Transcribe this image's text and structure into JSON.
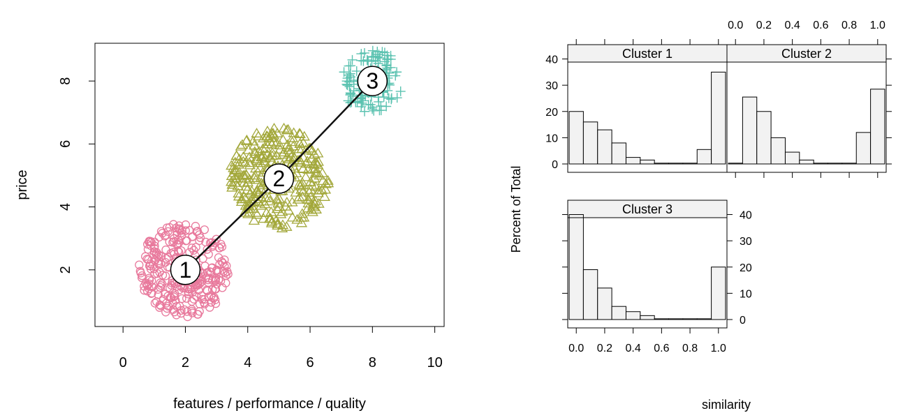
{
  "chart_data": [
    {
      "type": "scatter",
      "xlabel": "features / performance / quality",
      "ylabel": "price",
      "xlim": [
        -0.9,
        10.3
      ],
      "ylim": [
        0.2,
        9.2
      ],
      "x_ticks": [
        "0",
        "2",
        "4",
        "6",
        "8",
        "10"
      ],
      "y_ticks": [
        "2",
        "4",
        "6",
        "8"
      ],
      "grid": false,
      "colors": {
        "cluster1": "#e8799c",
        "cluster2": "#a3a83b",
        "cluster3": "#5bc2b0",
        "line": "#111111"
      },
      "clusters": [
        {
          "label": "1",
          "center": [
            2.0,
            2.0
          ],
          "radius": 1.5,
          "n": 300,
          "marker": "circle",
          "color": "#e8799c"
        },
        {
          "label": "2",
          "center": [
            5.0,
            4.9
          ],
          "radius": 1.6,
          "n": 300,
          "marker": "triangle",
          "color": "#a3a83b"
        },
        {
          "label": "3",
          "center": [
            8.0,
            8.0
          ],
          "radius": 1.0,
          "n": 120,
          "marker": "plus",
          "color": "#5bc2b0"
        }
      ],
      "center_path": [
        [
          2.0,
          2.0
        ],
        [
          5.0,
          4.9
        ],
        [
          8.0,
          8.0
        ]
      ]
    },
    {
      "type": "bar",
      "subtype": "histogram-panels",
      "xlabel": "similarity",
      "ylabel": "Percent of Total",
      "xlim": [
        -0.06,
        1.06
      ],
      "ylim": [
        0,
        42
      ],
      "x_ticks": [
        "0.0",
        "0.2",
        "0.4",
        "0.6",
        "0.8",
        "1.0"
      ],
      "y_ticks": [
        "0",
        "10",
        "20",
        "30",
        "40"
      ],
      "bin_edges": [
        0.0,
        0.1,
        0.2,
        0.3,
        0.4,
        0.5,
        0.6,
        0.7,
        0.8,
        0.9,
        1.0
      ],
      "bar_fill": "#f2f2f2",
      "strip_fill": "#f2f2f2",
      "panels": [
        {
          "name": "Cluster 1",
          "values": [
            20,
            16,
            13,
            8,
            2.5,
            1.5,
            0.3,
            0.3,
            0.3,
            5.5,
            35
          ]
        },
        {
          "name": "Cluster 2",
          "values": [
            0.3,
            25.5,
            20,
            10,
            4.5,
            1.5,
            0.3,
            0.3,
            0.3,
            12,
            28.5
          ]
        },
        {
          "name": "Cluster 3",
          "values": [
            40,
            19,
            12,
            5,
            3,
            1.5,
            0.3,
            0.3,
            0.3,
            0.3,
            20
          ]
        }
      ]
    }
  ]
}
